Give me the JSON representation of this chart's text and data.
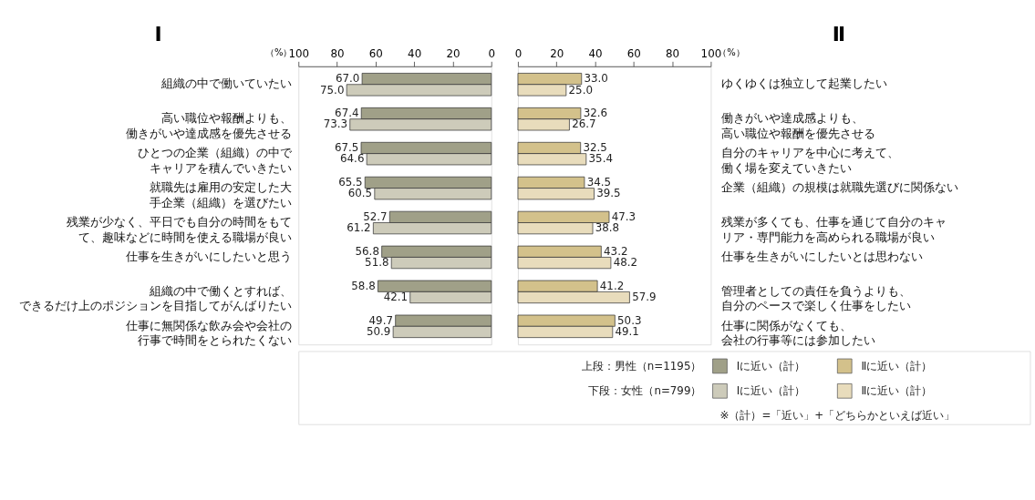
{
  "chart_data": [
    {
      "type": "bar",
      "orientation": "horizontal",
      "title": "Ⅰ",
      "xlabel": "（%）",
      "legend": "bottom",
      "xlim": [
        100,
        0
      ],
      "xticks": [
        100,
        80,
        60,
        40,
        20,
        0
      ],
      "categories": [
        "組織の中で働いていたい",
        "高い職位や報酬よりも、働きがいや達成感を優先させる",
        "ひとつの企業（組織）の中でキャリアを積んでいきたい",
        "就職先は雇用の安定した大手企業（組織）を選びたい",
        "残業が少なく、平日でも自分の時間をもてて、趣味などに時間を使える職場が良い",
        "仕事を生きがいにしたいと思う",
        "組織の中で働くとすれば、できるだけ上のポジションを目指してがんばりたい",
        "仕事に無関係な飲み会や会社の行事で時間をとられたくない"
      ],
      "series": [
        {
          "name": "Ⅰに近い（計）",
          "color": "#a0a088",
          "values": [
            67.0,
            67.4,
            67.5,
            65.5,
            52.7,
            56.8,
            58.8,
            49.7
          ],
          "value_labels": [
            "67.0",
            "67.4",
            "67.5",
            "65.5",
            "52.7",
            "56.8",
            "58.8",
            "49.7"
          ]
        },
        {
          "name": "Ⅰに近い（計）",
          "color": "#cdcbba",
          "values": [
            75.0,
            73.3,
            64.6,
            60.5,
            61.2,
            51.8,
            42.1,
            50.9
          ],
          "value_labels": [
            "75.0",
            "73.3",
            "64.6",
            "60.5",
            "61.2",
            "51.8",
            "42.1",
            "50.9"
          ]
        }
      ],
      "annotations": [
        "上段：男性（n=1195）",
        "下段：女性（n=799）",
        "※（計）=「近い」+「どちらかといえば近い」"
      ]
    },
    {
      "type": "bar",
      "orientation": "horizontal",
      "title": "Ⅱ",
      "xlabel": "（%）",
      "legend": "bottom",
      "xlim": [
        0,
        100
      ],
      "xticks": [
        0,
        20,
        40,
        60,
        80,
        100
      ],
      "categories": [
        "ゆくゆくは独立して起業したい",
        "働きがいや達成感よりも、高い職位や報酬を優先させる",
        "自分のキャリアを中心に考えて、働く場を変えていきたい",
        "企業（組織）の規模は就職先選びに関係ない",
        "残業が多くても、仕事を通じて自分のキャリア・専門能力を高められる職場が良い",
        "仕事を生きがいにしたいとは思わない",
        "管理者としての責任を負うよりも、自分のペースで楽しく仕事をしたい",
        "仕事に関係がなくても、会社の行事等には参加したい"
      ],
      "series": [
        {
          "name": "Ⅱに近い（計）",
          "color": "#d3c18b",
          "values": [
            33.0,
            32.6,
            32.5,
            34.5,
            47.3,
            43.2,
            41.2,
            50.3
          ],
          "value_labels": [
            "33.0",
            "32.6",
            "32.5",
            "34.5",
            "47.3",
            "43.2",
            "41.2",
            "50.3"
          ]
        },
        {
          "name": "Ⅱに近い（計）",
          "color": "#e8dcbc",
          "values": [
            25.0,
            26.7,
            35.4,
            39.5,
            38.8,
            48.2,
            57.9,
            49.1
          ],
          "value_labels": [
            "25.0",
            "26.7",
            "35.4",
            "39.5",
            "38.8",
            "48.2",
            "57.9",
            "49.1"
          ]
        }
      ]
    }
  ]
}
